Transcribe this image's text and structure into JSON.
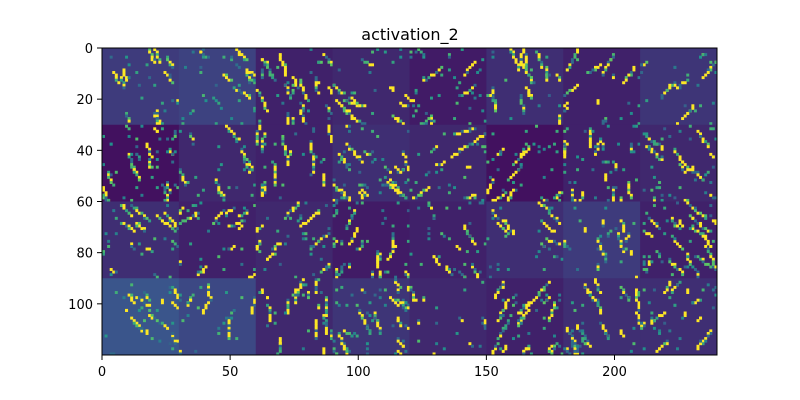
{
  "chart_data": {
    "type": "heatmap",
    "title": "activation_2",
    "xlabel": "",
    "ylabel": "",
    "xlim": [
      0,
      240
    ],
    "ylim": [
      120,
      0
    ],
    "x_ticks": [
      0,
      50,
      100,
      150,
      200
    ],
    "y_ticks": [
      0,
      20,
      40,
      60,
      80,
      100
    ],
    "grid": false,
    "legend": "none",
    "tile_grid": {
      "rows": 4,
      "cols": 8,
      "tile_size": 30
    },
    "colormap": [
      "#440154",
      "#3b528b",
      "#21918c",
      "#5ec962",
      "#fde725"
    ],
    "tile_background_levels": [
      [
        0.18,
        0.2,
        0.1,
        0.12,
        0.08,
        0.14,
        0.1,
        0.16
      ],
      [
        0.05,
        0.12,
        0.1,
        0.14,
        0.12,
        0.05,
        0.1,
        0.12
      ],
      [
        0.14,
        0.1,
        0.12,
        0.08,
        0.1,
        0.14,
        0.18,
        0.1
      ],
      [
        0.26,
        0.22,
        0.12,
        0.16,
        0.12,
        0.1,
        0.14,
        0.14
      ]
    ]
  }
}
